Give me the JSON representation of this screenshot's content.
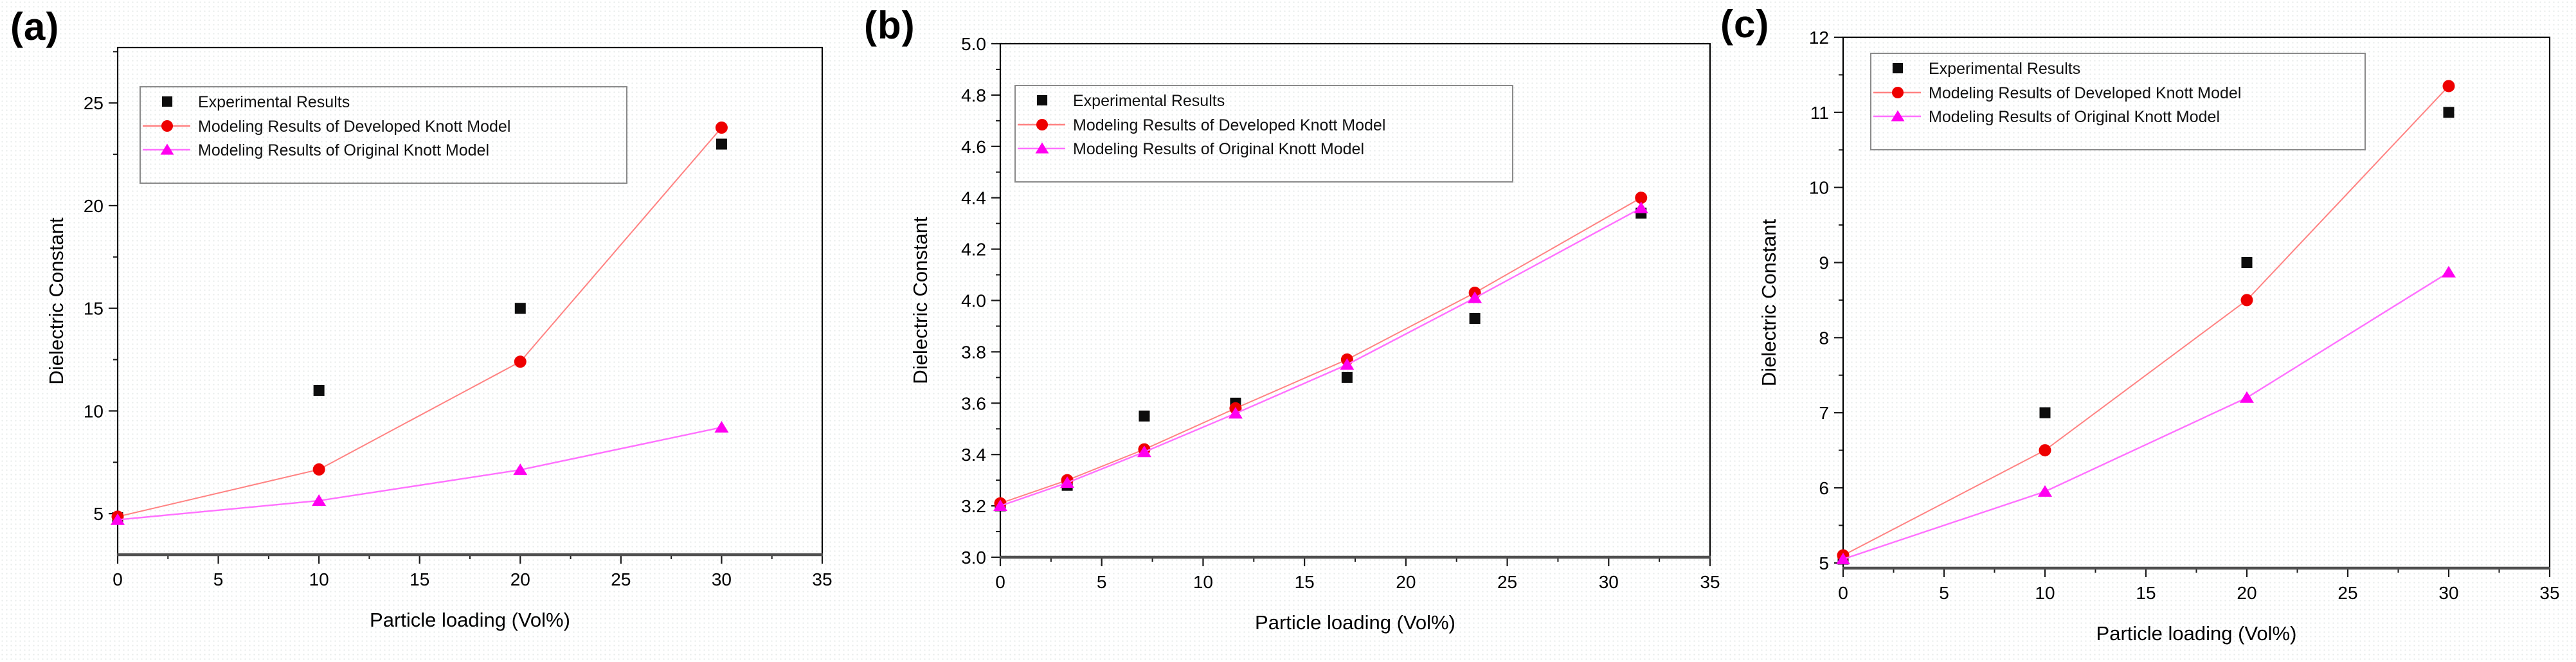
{
  "figure": {
    "description": "Dielectric constant vs particle loading, three panels",
    "legend_labels": [
      "Experimental Results",
      "Modeling Results of Developed Knott Model",
      "Modeling Results of Original Knott Model"
    ],
    "colors": {
      "experimental_marker": "#0d0d0d",
      "developed_marker": "#ee0000",
      "developed_line": "#ff8282",
      "original_marker": "#ff00f0",
      "original_line": "#ff70ff",
      "frame": "#000000",
      "bottom_axis": "#4f4f4f",
      "legend_border": "#8a8a8a"
    }
  },
  "chart_data": [
    {
      "panel_label": "(a)",
      "type": "scatter",
      "xlabel": "Particle loading (Vol%)",
      "ylabel": "Dielectric Constant",
      "xlim": [
        0,
        35
      ],
      "xticks": [
        0,
        5,
        10,
        15,
        20,
        25,
        30,
        35
      ],
      "xtick_labels": [
        "0",
        "5",
        "10",
        "15",
        "20",
        "25",
        "30",
        "35"
      ],
      "x_minor_step": 2.5,
      "ylim": [
        3.0,
        27.7
      ],
      "yticks": [
        5,
        10,
        15,
        20,
        25
      ],
      "ytick_labels": [
        "5",
        "10",
        "15",
        "20",
        "25"
      ],
      "y_minor_step": 2.5,
      "grid": false,
      "legend_position": "upper-left",
      "series": [
        {
          "name": "Experimental Results",
          "marker": "square",
          "marker_color": "#0d0d0d",
          "has_line": false,
          "x": [
            0,
            10,
            20,
            30
          ],
          "y": [
            4.8,
            11.0,
            15.0,
            23.0
          ]
        },
        {
          "name": "Modeling Results of Developed Knott Model",
          "marker": "circle",
          "marker_color": "#ee0000",
          "has_line": true,
          "line_color": "#ff8282",
          "x": [
            0,
            10,
            20,
            30
          ],
          "y": [
            4.85,
            7.15,
            12.4,
            23.8
          ]
        },
        {
          "name": "Modeling Results of Original Knott Model",
          "marker": "triangle",
          "marker_color": "#ff00f0",
          "has_line": true,
          "line_color": "#ff70ff",
          "x": [
            0,
            10,
            20,
            30
          ],
          "y": [
            4.7,
            5.63,
            7.13,
            9.2
          ]
        }
      ]
    },
    {
      "panel_label": "(b)",
      "type": "scatter",
      "xlabel": "Particle loading (Vol%)",
      "ylabel": "Dielectric Constant",
      "xlim": [
        0,
        35
      ],
      "xticks": [
        0,
        5,
        10,
        15,
        20,
        25,
        30,
        35
      ],
      "xtick_labels": [
        "0",
        "5",
        "10",
        "15",
        "20",
        "25",
        "30",
        "35"
      ],
      "x_minor_step": 2.5,
      "ylim": [
        3.0,
        5.0
      ],
      "yticks": [
        3.0,
        3.2,
        3.4,
        3.6,
        3.8,
        4.0,
        4.2,
        4.4,
        4.6,
        4.8,
        5.0
      ],
      "ytick_labels": [
        "3.0",
        "3.2",
        "3.4",
        "3.6",
        "3.8",
        "4.0",
        "4.2",
        "4.4",
        "4.6",
        "4.8",
        "5.0"
      ],
      "y_minor_step": 0.1,
      "grid": false,
      "legend_position": "upper-left",
      "series": [
        {
          "name": "Experimental Results",
          "marker": "square",
          "marker_color": "#0d0d0d",
          "has_line": false,
          "x": [
            0,
            3.3,
            7.1,
            11.6,
            17.1,
            23.4,
            31.6
          ],
          "y": [
            3.2,
            3.28,
            3.55,
            3.6,
            3.7,
            3.93,
            4.34
          ]
        },
        {
          "name": "Modeling Results of Developed Knott Model",
          "marker": "circle",
          "marker_color": "#ee0000",
          "has_line": true,
          "line_color": "#ff8282",
          "x": [
            0,
            3.3,
            7.1,
            11.6,
            17.1,
            23.4,
            31.6
          ],
          "y": [
            3.21,
            3.3,
            3.42,
            3.58,
            3.77,
            4.03,
            4.4
          ]
        },
        {
          "name": "Modeling Results of Original Knott Model",
          "marker": "triangle",
          "marker_color": "#ff00f0",
          "has_line": true,
          "line_color": "#ff70ff",
          "x": [
            0,
            3.3,
            7.1,
            11.6,
            17.1,
            23.4,
            31.6
          ],
          "y": [
            3.2,
            3.29,
            3.41,
            3.56,
            3.75,
            4.01,
            4.36
          ]
        }
      ]
    },
    {
      "panel_label": "(c)",
      "type": "scatter",
      "xlabel": "Particle loading (Vol%)",
      "ylabel": "Dielectric Constant",
      "xlim": [
        0,
        35
      ],
      "xticks": [
        0,
        5,
        10,
        15,
        20,
        25,
        30,
        35
      ],
      "xtick_labels": [
        "0",
        "5",
        "10",
        "15",
        "20",
        "25",
        "30",
        "35"
      ],
      "x_minor_step": 2.5,
      "ylim": [
        4.93,
        12.0
      ],
      "yticks": [
        5,
        6,
        7,
        8,
        9,
        10,
        11,
        12
      ],
      "ytick_labels": [
        "5",
        "6",
        "7",
        "8",
        "9",
        "10",
        "11",
        "12"
      ],
      "y_minor_step": 0.5,
      "grid": false,
      "legend_position": "upper-left",
      "series": [
        {
          "name": "Experimental Results",
          "marker": "square",
          "marker_color": "#0d0d0d",
          "has_line": false,
          "x": [
            0,
            10,
            20,
            30
          ],
          "y": [
            5.05,
            7.0,
            9.0,
            11.0
          ]
        },
        {
          "name": "Modeling Results of Developed Knott Model",
          "marker": "circle",
          "marker_color": "#ee0000",
          "has_line": true,
          "line_color": "#ff8282",
          "x": [
            0,
            10,
            20,
            30
          ],
          "y": [
            5.1,
            6.5,
            8.5,
            11.35
          ]
        },
        {
          "name": "Modeling Results of Original Knott Model",
          "marker": "triangle",
          "marker_color": "#ff00f0",
          "has_line": true,
          "line_color": "#ff70ff",
          "x": [
            0,
            10,
            20,
            30
          ],
          "y": [
            5.05,
            5.95,
            7.2,
            8.87
          ]
        }
      ]
    }
  ]
}
